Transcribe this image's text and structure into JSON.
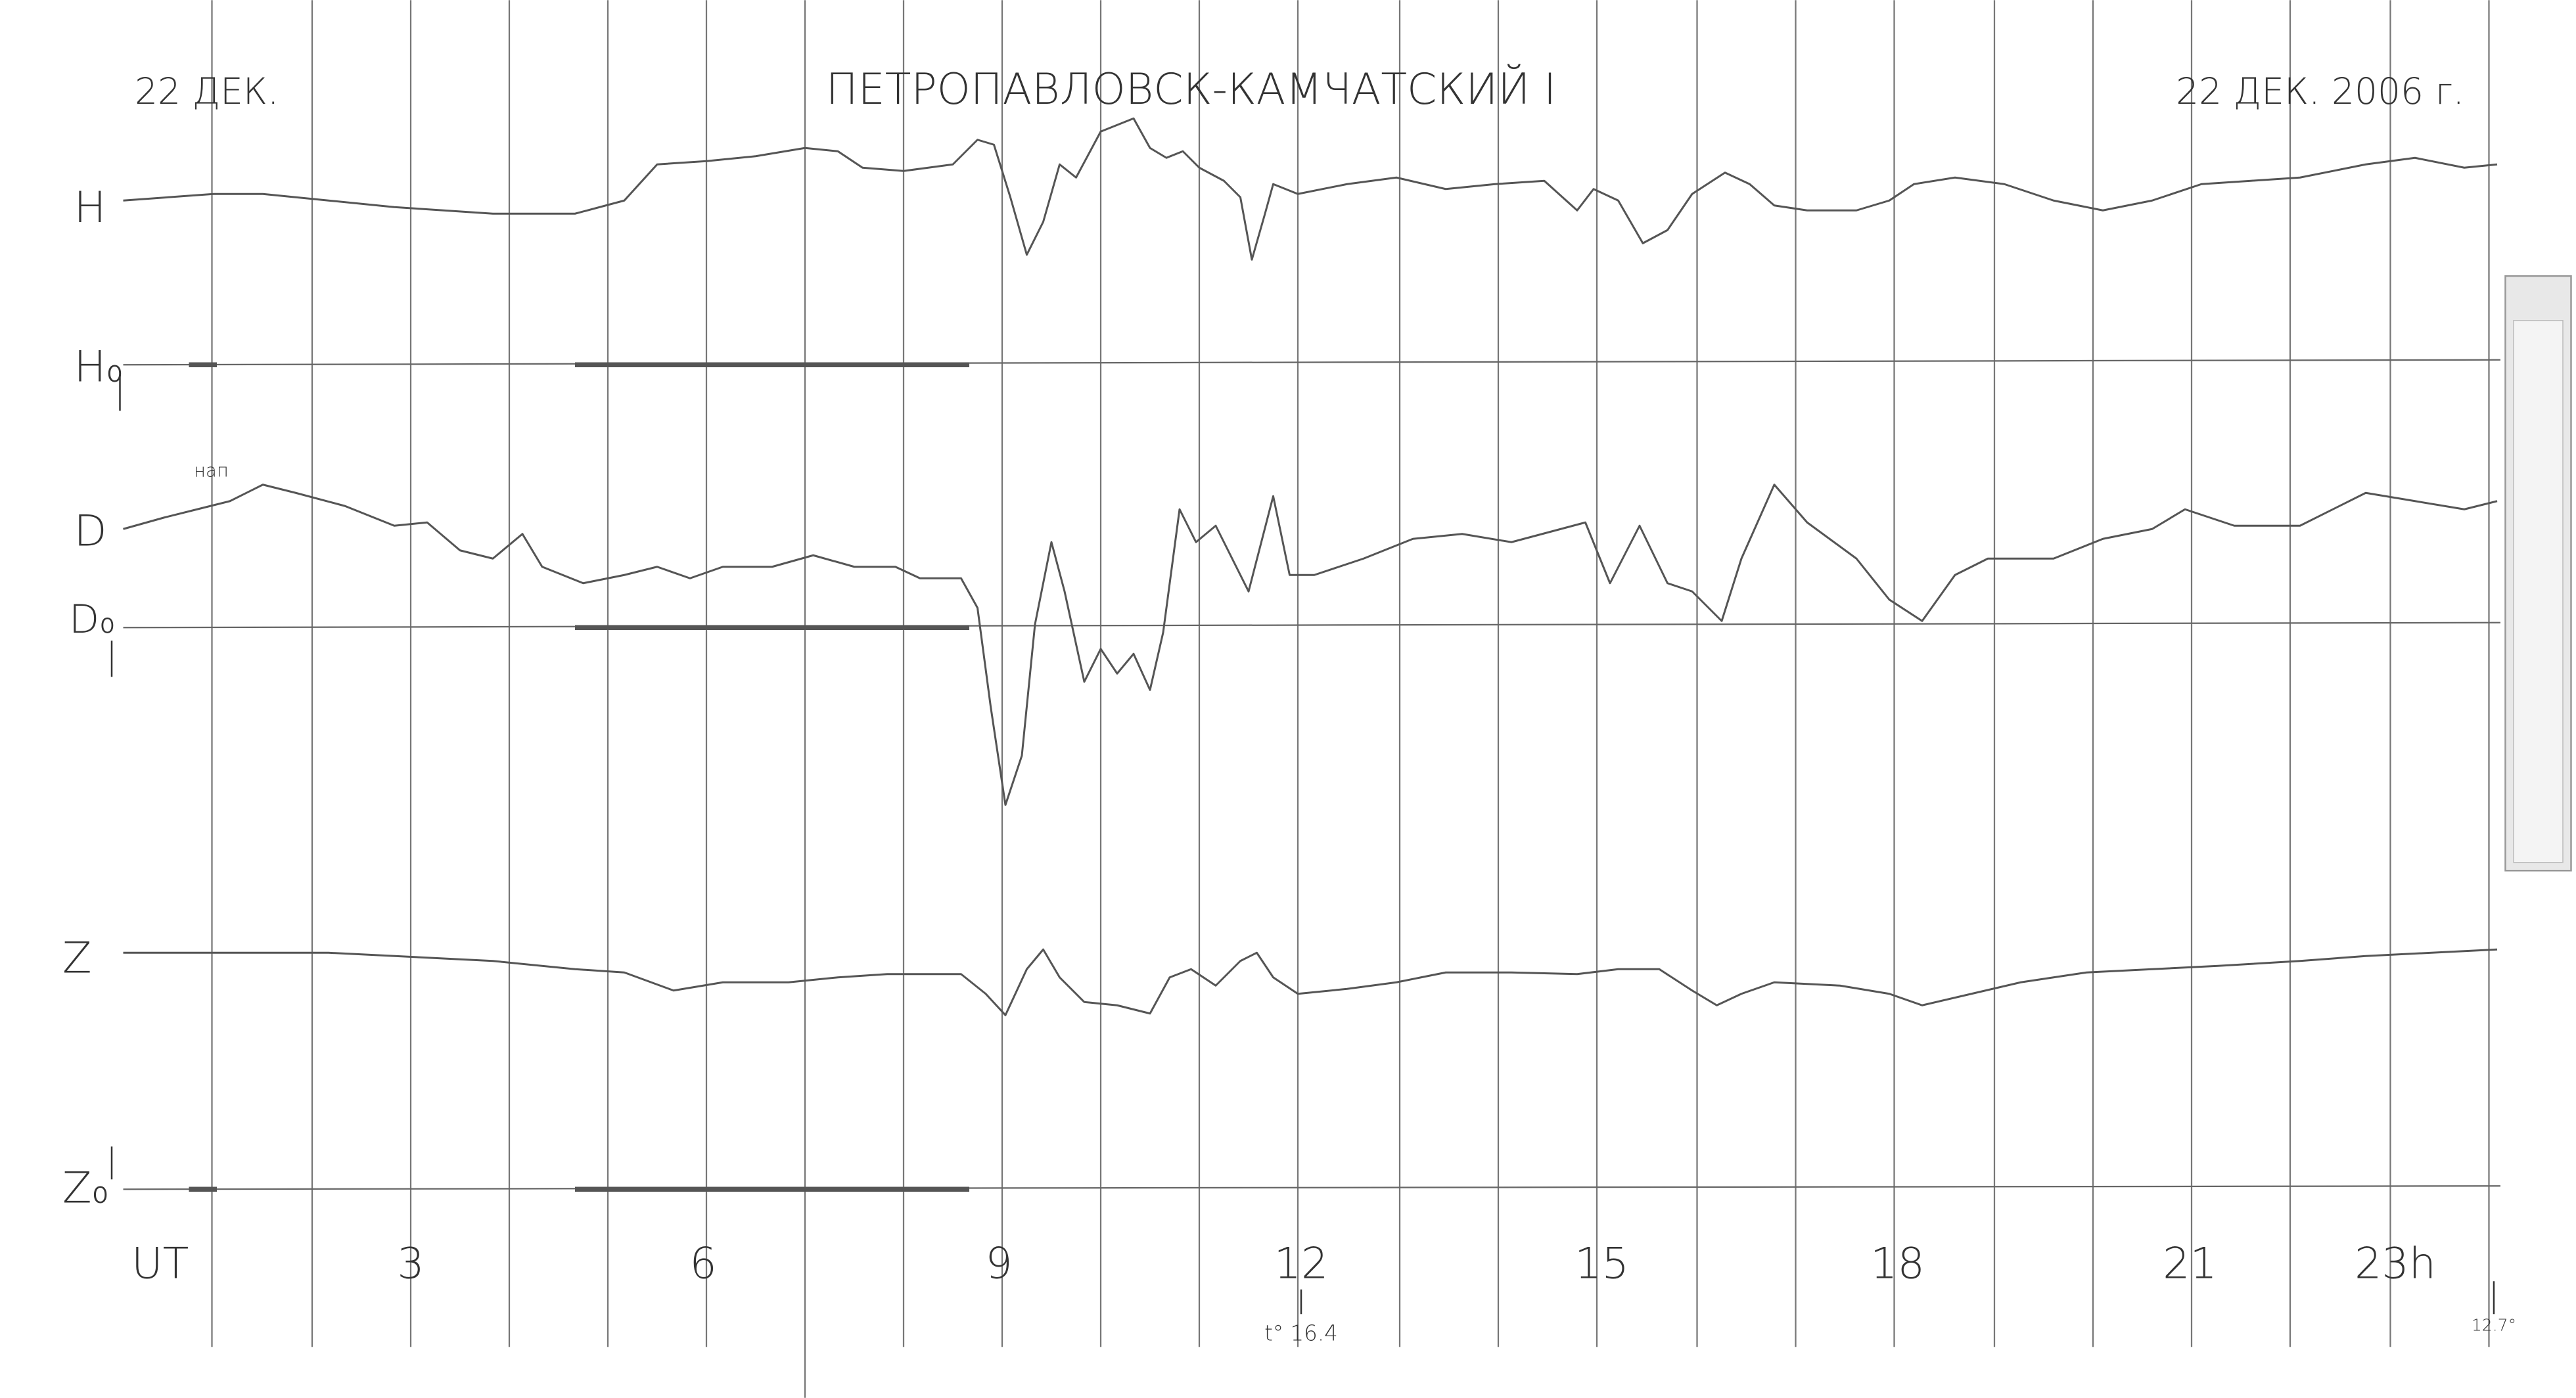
{
  "header": {
    "left_date": "22 ДЕК.",
    "title": "ПЕТРОПАВЛОВСК-КАМЧАТСКИЙ I",
    "right_date": "22 ДЕК. 2006 г."
  },
  "channels": [
    "H",
    "H₀",
    "D",
    "D₀",
    "Z",
    "Z₀"
  ],
  "hours": [
    "UT",
    "3",
    "6",
    "9",
    "12",
    "15",
    "18",
    "21",
    "23h"
  ],
  "notes": {
    "handwritten": "нап",
    "temperature": "t° 16.4",
    "end_temperature": "12.7°"
  }
}
